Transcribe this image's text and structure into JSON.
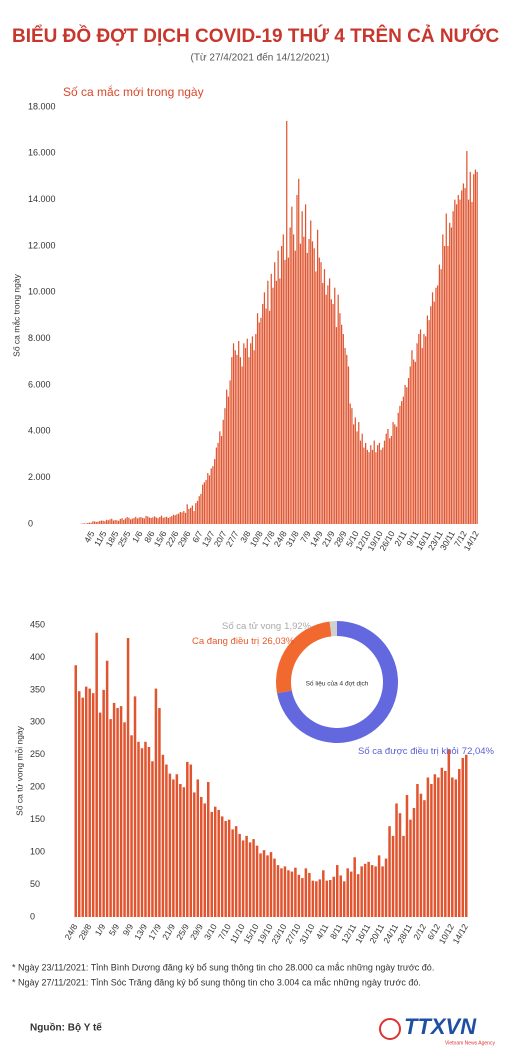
{
  "title": "BIỂU ĐỒ ĐỢT DỊCH COVID-19 THỨ 4 TRÊN CẢ NƯỚC",
  "subtitle": "(Từ 27/4/2021 đến 14/12/2021)",
  "chart_data": [
    {
      "type": "bar",
      "title": "Số ca mắc mới trong ngày",
      "y_label": "Số ca mắc trong ngày",
      "color": "#e0552f",
      "ylim": [
        0,
        18000
      ],
      "yticks": [
        0,
        {
          "value": 2000,
          "label": "2.000"
        },
        {
          "value": 4000,
          "label": "4.000"
        },
        {
          "value": 6000,
          "label": "6.000"
        },
        {
          "value": 8000,
          "label": "8.000"
        },
        {
          "value": 10000,
          "label": "10.000"
        },
        {
          "value": 12000,
          "label": "12.000"
        },
        {
          "value": 14000,
          "label": "14.000"
        },
        {
          "value": 16000,
          "label": "16.000"
        },
        {
          "value": 18000,
          "label": "18.000"
        }
      ],
      "categories": [
        null,
        null,
        null,
        null,
        null,
        null,
        null,
        "4/5",
        null,
        null,
        null,
        null,
        null,
        null,
        "11/5",
        null,
        null,
        null,
        null,
        null,
        null,
        "18/5",
        null,
        null,
        null,
        null,
        null,
        null,
        "25/5",
        null,
        null,
        null,
        null,
        null,
        null,
        "1/6",
        null,
        null,
        null,
        null,
        null,
        null,
        "8/6",
        null,
        null,
        null,
        null,
        null,
        null,
        "15/6",
        null,
        null,
        null,
        null,
        null,
        null,
        "22/6",
        null,
        null,
        null,
        null,
        null,
        null,
        "29/6",
        null,
        null,
        null,
        null,
        null,
        null,
        "6/7",
        null,
        null,
        null,
        null,
        null,
        null,
        "13/7",
        null,
        null,
        null,
        null,
        null,
        null,
        "20/7",
        null,
        null,
        null,
        null,
        null,
        null,
        "27/7",
        null,
        null,
        null,
        null,
        null,
        null,
        "3/8",
        null,
        null,
        null,
        null,
        null,
        null,
        "10/8",
        null,
        null,
        null,
        null,
        null,
        null,
        "17/8",
        null,
        null,
        null,
        null,
        null,
        null,
        "24/8",
        null,
        null,
        null,
        null,
        null,
        null,
        "31/8",
        null,
        null,
        null,
        null,
        null,
        null,
        "7/9",
        null,
        null,
        null,
        null,
        null,
        null,
        "14/9",
        null,
        null,
        null,
        null,
        null,
        null,
        "21/9",
        null,
        null,
        null,
        null,
        null,
        null,
        "28/9",
        null,
        null,
        null,
        null,
        null,
        null,
        "5/10",
        null,
        null,
        null,
        null,
        null,
        null,
        "12/10",
        null,
        null,
        null,
        null,
        null,
        null,
        "19/10",
        null,
        null,
        null,
        null,
        null,
        null,
        "26/10",
        null,
        null,
        null,
        null,
        null,
        null,
        "2/11",
        null,
        null,
        null,
        null,
        null,
        null,
        "9/11",
        null,
        null,
        null,
        null,
        null,
        null,
        "16/11",
        null,
        null,
        null,
        null,
        null,
        null,
        "23/11",
        null,
        null,
        null,
        null,
        null,
        null,
        "30/11",
        null,
        null,
        null,
        null,
        null,
        null,
        "7/12",
        null,
        null,
        null,
        null,
        null,
        null,
        "14/12"
      ],
      "values": [
        10,
        20,
        30,
        20,
        40,
        60,
        50,
        120,
        110,
        90,
        100,
        130,
        150,
        140,
        120,
        180,
        160,
        200,
        230,
        150,
        170,
        160,
        140,
        220,
        250,
        180,
        240,
        300,
        270,
        200,
        230,
        260,
        310,
        240,
        280,
        300,
        260,
        240,
        350,
        320,
        280,
        260,
        290,
        330,
        280,
        250,
        300,
        360,
        270,
        290,
        310,
        260,
        300,
        340,
        400,
        380,
        420,
        450,
        520,
        500,
        560,
        480,
        850,
        650,
        700,
        800,
        560,
        900,
        1000,
        1200,
        1300,
        1700,
        1800,
        1900,
        2200,
        2100,
        2400,
        2500,
        2800,
        3300,
        3500,
        4000,
        3800,
        4500,
        5000,
        5800,
        5500,
        6200,
        7200,
        7800,
        7500,
        7300,
        7900,
        7200,
        6800,
        7800,
        7600,
        8000,
        7200,
        7800,
        8100,
        7500,
        8200,
        9100,
        8700,
        8900,
        9500,
        10000,
        9300,
        10500,
        9200,
        10800,
        10200,
        11300,
        10500,
        11800,
        10600,
        12000,
        12500,
        11400,
        17400,
        11500,
        12800,
        13700,
        12500,
        11800,
        14200,
        14900,
        12100,
        13500,
        12400,
        13800,
        11700,
        12300,
        13100,
        12200,
        11900,
        10900,
        12700,
        11500,
        11300,
        10400,
        11000,
        9900,
        10300,
        10600,
        9700,
        9500,
        10200,
        8500,
        9900,
        9100,
        8600,
        8200,
        7600,
        7300,
        6800,
        5200,
        5000,
        4300,
        4600,
        4000,
        4400,
        3600,
        3900,
        3300,
        3500,
        3200,
        3100,
        3400,
        3200,
        3600,
        3100,
        3400,
        3500,
        3200,
        3300,
        3600,
        3900,
        4100,
        3700,
        3800,
        4400,
        4300,
        4200,
        4800,
        5100,
        5300,
        5500,
        6000,
        5900,
        6300,
        6800,
        7500,
        7100,
        7000,
        7800,
        8200,
        8400,
        7600,
        8200,
        8100,
        9000,
        8800,
        9400,
        10000,
        9600,
        10200,
        10300,
        11200,
        11000,
        12500,
        12000,
        13400,
        12000,
        13000,
        12800,
        13500,
        14000,
        13800,
        14200,
        14000,
        14400,
        14700,
        14500,
        16100,
        14000,
        15200,
        13900,
        15100,
        15300,
        15200
      ]
    },
    {
      "type": "bar",
      "y_label": "Số ca tử vong mỗi ngày",
      "color": "#e0552f",
      "ylim": [
        0,
        450
      ],
      "yticks": [
        0,
        50,
        100,
        150,
        200,
        250,
        300,
        350,
        400,
        450
      ],
      "categories": [
        "24/8",
        null,
        null,
        null,
        "28/8",
        null,
        null,
        null,
        "1/9",
        null,
        null,
        null,
        "5/9",
        null,
        null,
        null,
        "9/9",
        null,
        null,
        null,
        "13/9",
        null,
        null,
        null,
        "17/9",
        null,
        null,
        null,
        "21/9",
        null,
        null,
        null,
        "25/9",
        null,
        null,
        null,
        "29/9",
        null,
        null,
        null,
        "3/10",
        null,
        null,
        null,
        "7/10",
        null,
        null,
        null,
        "11/10",
        null,
        null,
        null,
        "15/10",
        null,
        null,
        null,
        "19/10",
        null,
        null,
        null,
        "23/10",
        null,
        null,
        null,
        "27/10",
        null,
        null,
        null,
        "31/10",
        null,
        null,
        null,
        "4/11",
        null,
        null,
        null,
        "8/11",
        null,
        null,
        null,
        "12/11",
        null,
        null,
        null,
        "16/11",
        null,
        null,
        null,
        "20/11",
        null,
        null,
        null,
        "24/11",
        null,
        null,
        null,
        "28/11",
        null,
        null,
        null,
        "2/12",
        null,
        null,
        null,
        "6/12",
        null,
        null,
        null,
        "10/12",
        null,
        null,
        null,
        "14/12"
      ],
      "values": [
        388,
        348,
        338,
        355,
        352,
        345,
        438,
        315,
        350,
        395,
        305,
        330,
        322,
        325,
        300,
        430,
        280,
        340,
        270,
        260,
        270,
        262,
        240,
        352,
        322,
        250,
        235,
        221,
        212,
        220,
        205,
        200,
        239,
        235,
        192,
        212,
        185,
        175,
        208,
        162,
        170,
        165,
        155,
        148,
        150,
        135,
        140,
        128,
        118,
        125,
        115,
        120,
        110,
        98,
        103,
        95,
        100,
        90,
        80,
        75,
        78,
        72,
        70,
        76,
        65,
        60,
        75,
        68,
        56,
        55,
        58,
        72,
        56,
        57,
        62,
        80,
        64,
        55,
        75,
        70,
        92,
        66,
        78,
        82,
        85,
        80,
        78,
        95,
        78,
        90,
        140,
        125,
        175,
        160,
        125,
        188,
        150,
        168,
        205,
        190,
        180,
        215,
        205,
        220,
        215,
        230,
        225,
        258,
        215,
        212,
        228,
        245,
        250
      ]
    },
    {
      "type": "donut",
      "center_label": "Số liệu của 4 đợt dịch",
      "categories": [
        "Số ca được điều trị khỏi",
        "Ca đang điều trị",
        "Số ca tử vong"
      ],
      "values": [
        72.04,
        26.03,
        1.92
      ],
      "value_labels": [
        "72,04%",
        "26,03%",
        "1,92%"
      ],
      "colors": [
        "#6368df",
        "#f2692f",
        "#d0d0d0"
      ]
    }
  ],
  "notes": [
    "* Ngày 23/11/2021: Tỉnh Bình Dương đăng ký bổ sung thông tin cho 28.000 ca mắc những ngày trước đó.",
    "* Ngày 27/11/2021: Tỉnh Sóc Trăng đăng ký bổ sung thông tin cho 3.004 ca mắc những ngày trước đó."
  ],
  "source": "Nguồn: Bộ Y tế",
  "logo": {
    "text": "TTXVN",
    "tagline": "Vietnam News Agency"
  }
}
